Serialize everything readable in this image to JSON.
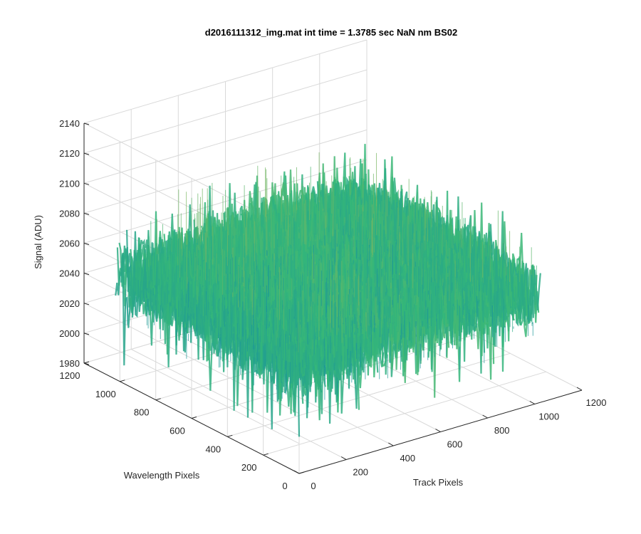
{
  "chart_data": {
    "type": "surface",
    "title": "d2016111312_img.mat int time = 1.3785 sec  NaN nm BS02",
    "xlabel": "Track Pixels",
    "ylabel": "Wavelength Pixels",
    "zlabel": "Signal (ADU)",
    "xlim": [
      0,
      1200
    ],
    "ylim": [
      0,
      1200
    ],
    "zlim": [
      1980,
      2140
    ],
    "xticks": [
      "0",
      "200",
      "400",
      "600",
      "800",
      "1000",
      "1200"
    ],
    "yticks": [
      "0",
      "200",
      "400",
      "600",
      "800",
      "1000",
      "1200"
    ],
    "zticks": [
      "1980",
      "2000",
      "2020",
      "2040",
      "2060",
      "2080",
      "2100",
      "2120",
      "2140"
    ],
    "x_extent": [
      0,
      1024
    ],
    "y_extent": [
      0,
      1024
    ],
    "signal_baseline": 2055,
    "signal_min": 1990,
    "signal_max": 2130,
    "grid": true,
    "colormap": "parula",
    "colors": {
      "low": "#0072bd",
      "mid": "#35b779",
      "high": "#edb83f"
    }
  }
}
